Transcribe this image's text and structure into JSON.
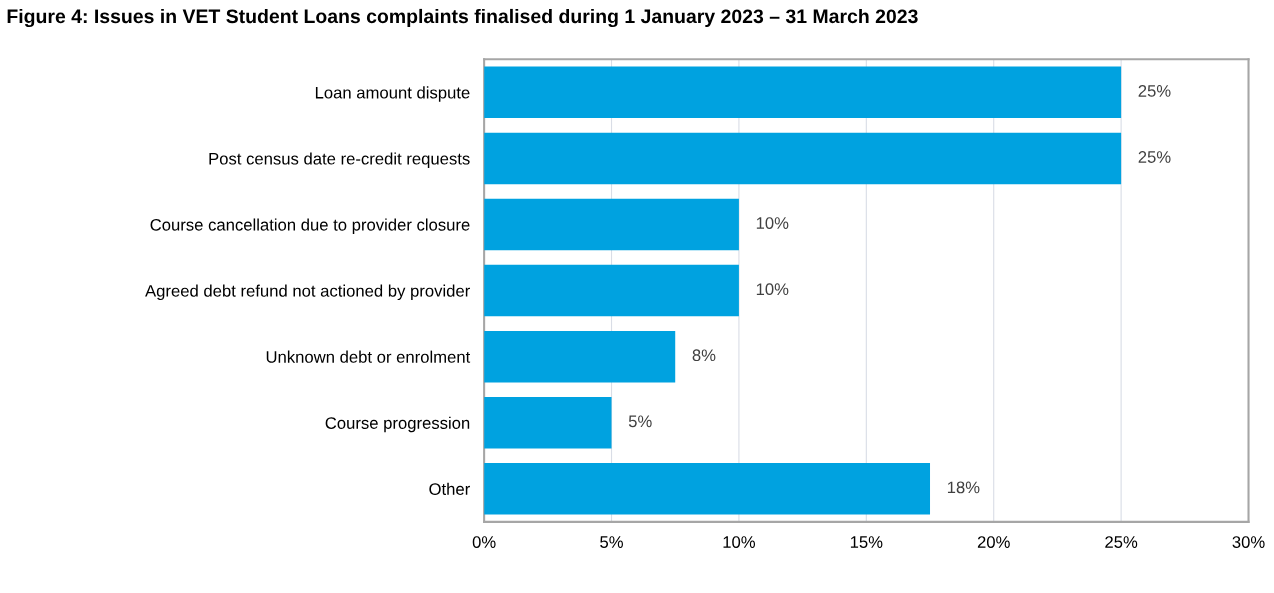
{
  "chart_data": {
    "type": "bar",
    "orientation": "horizontal",
    "title": "Figure 4: Issues in VET Student Loans complaints finalised during 1 January 2023 – 31 March 2023",
    "categories": [
      "Loan amount dispute",
      "Post census date re-credit requests",
      "Course cancellation due to provider closure",
      "Agreed debt refund not actioned by provider",
      "Unknown debt or enrolment",
      "Course progression",
      "Other"
    ],
    "values": [
      25,
      25,
      10,
      10,
      7.5,
      5,
      17.5
    ],
    "value_labels": [
      "25%",
      "25%",
      "10%",
      "10%",
      "8%",
      "5%",
      "18%"
    ],
    "color": "#00a2e0",
    "xlim": [
      0,
      30
    ],
    "xticks": [
      {
        "value": 0,
        "label": "0%"
      },
      {
        "value": 5,
        "label": "5%"
      },
      {
        "value": 10,
        "label": "10%"
      },
      {
        "value": 15,
        "label": "15%"
      },
      {
        "value": 20,
        "label": "20%"
      },
      {
        "value": 25,
        "label": "25%"
      },
      {
        "value": 30,
        "label": "30%"
      }
    ],
    "grid": "x"
  }
}
